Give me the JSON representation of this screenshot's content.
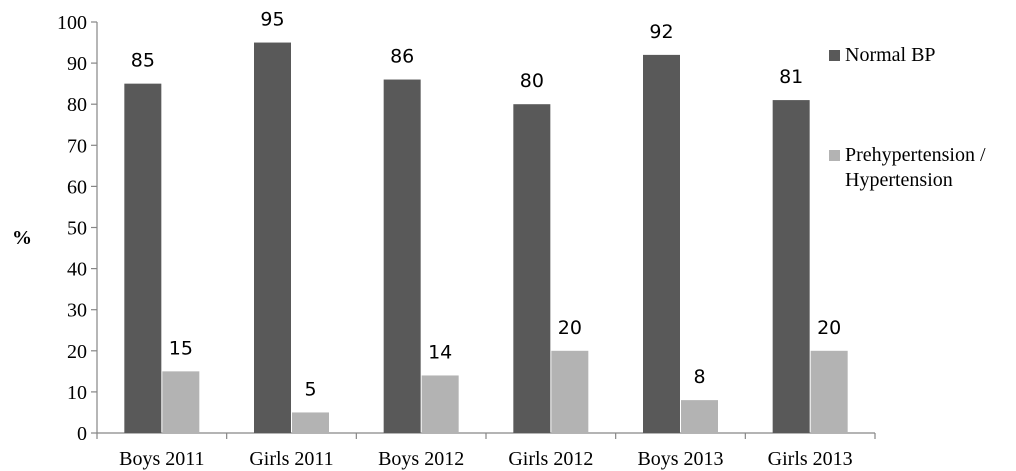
{
  "chart_data": {
    "type": "bar",
    "categories": [
      "Boys 2011",
      "Girls 2011",
      "Boys 2012",
      "Girls 2012",
      "Boys 2013",
      "Girls 2013"
    ],
    "series": [
      {
        "name": "Normal BP",
        "values": [
          85,
          95,
          86,
          80,
          92,
          81
        ],
        "color": "#595959"
      },
      {
        "name": "Prehypertension /\nHypertension",
        "values": [
          15,
          5,
          14,
          20,
          8,
          20
        ],
        "color": "#b3b3b3"
      }
    ],
    "ylabel": "%",
    "xlabel": "",
    "title": "",
    "ylim": [
      0,
      100
    ],
    "yticks": [
      0,
      10,
      20,
      30,
      40,
      50,
      60,
      70,
      80,
      90,
      100
    ],
    "grid": false,
    "legend_position": "right"
  }
}
